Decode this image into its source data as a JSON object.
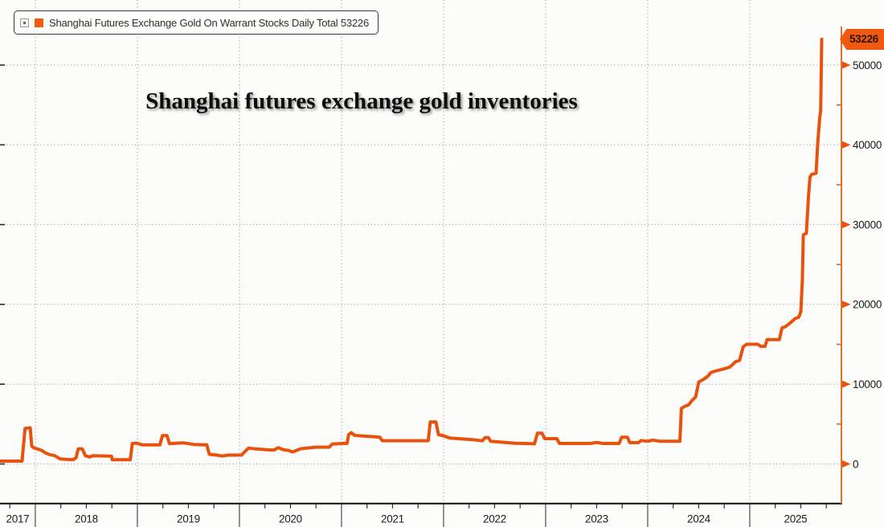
{
  "chart_data": {
    "type": "line",
    "title": "Shanghai futures exchange gold inventories",
    "legend": {
      "label": "Shanghai Futures Exchange Gold On Warrant Stocks Daily Total 53226",
      "swatch_color": "#f25c12"
    },
    "last_value": 53226,
    "last_value_label": "53226",
    "grid": {
      "show": true,
      "style": "dotted",
      "color": "#8a8a8a"
    },
    "x_axis": {
      "range": [
        2017.654,
        2025.898
      ],
      "year_labels": [
        "2017",
        "2018",
        "2019",
        "2020",
        "2021",
        "2022",
        "2023",
        "2024",
        "2025"
      ],
      "boundary_years": [
        2018,
        2019,
        2020,
        2021,
        2022,
        2023,
        2024,
        2025
      ],
      "minor_tick_interval_years": 0.25
    },
    "y_axis": {
      "side": "right",
      "ylim": [
        0,
        58150
      ],
      "ticks": [
        {
          "v": 0,
          "label": "0"
        },
        {
          "v": 10000,
          "label": "10000"
        },
        {
          "v": 20000,
          "label": "20000"
        },
        {
          "v": 30000,
          "label": "30000"
        },
        {
          "v": 40000,
          "label": "40000"
        },
        {
          "v": 50000,
          "label": "50000"
        }
      ],
      "minor_ticks_values": [
        5000,
        15000,
        25000,
        35000,
        45000
      ]
    },
    "colors": {
      "line": "#e8520d",
      "axis_orange": "#dd7325",
      "tag_bg": "#f05a10",
      "axis_text": "#1b1b1b",
      "bottom_axis": "#1a1a1a",
      "background": "#fcfcfa"
    },
    "series": [
      {
        "name": "Shanghai Futures Exchange Gold On Warrant Stocks Daily Total",
        "color": "#e8520d",
        "width": 4,
        "points": [
          [
            2017.654,
            350
          ],
          [
            2017.87,
            350
          ],
          [
            2017.9,
            4450
          ],
          [
            2017.95,
            4530
          ],
          [
            2017.965,
            2215
          ],
          [
            2017.99,
            1980
          ],
          [
            2018.03,
            1840
          ],
          [
            2018.06,
            1700
          ],
          [
            2018.1,
            1380
          ],
          [
            2018.14,
            1180
          ],
          [
            2018.19,
            1040
          ],
          [
            2018.24,
            640
          ],
          [
            2018.31,
            560
          ],
          [
            2018.37,
            530
          ],
          [
            2018.4,
            775
          ],
          [
            2018.42,
            1880
          ],
          [
            2018.46,
            1880
          ],
          [
            2018.49,
            1040
          ],
          [
            2018.53,
            875
          ],
          [
            2018.57,
            1040
          ],
          [
            2018.72,
            975
          ],
          [
            2018.745,
            975
          ],
          [
            2018.755,
            530
          ],
          [
            2018.93,
            530
          ],
          [
            2018.95,
            2550
          ],
          [
            2018.99,
            2620
          ],
          [
            2019.05,
            2390
          ],
          [
            2019.22,
            2390
          ],
          [
            2019.245,
            3540
          ],
          [
            2019.29,
            3540
          ],
          [
            2019.315,
            2550
          ],
          [
            2019.45,
            2650
          ],
          [
            2019.55,
            2450
          ],
          [
            2019.68,
            2390
          ],
          [
            2019.705,
            1210
          ],
          [
            2019.78,
            1110
          ],
          [
            2019.83,
            1000
          ],
          [
            2019.89,
            1110
          ],
          [
            2020.02,
            1110
          ],
          [
            2020.06,
            1640
          ],
          [
            2020.09,
            1980
          ],
          [
            2020.16,
            1880
          ],
          [
            2020.3,
            1750
          ],
          [
            2020.34,
            1750
          ],
          [
            2020.38,
            2040
          ],
          [
            2020.43,
            1775
          ],
          [
            2020.48,
            1700
          ],
          [
            2020.52,
            1500
          ],
          [
            2020.6,
            1900
          ],
          [
            2020.75,
            2100
          ],
          [
            2020.88,
            2100
          ],
          [
            2020.91,
            2500
          ],
          [
            2021.02,
            2570
          ],
          [
            2021.055,
            2570
          ],
          [
            2021.07,
            3680
          ],
          [
            2021.095,
            3920
          ],
          [
            2021.13,
            3580
          ],
          [
            2021.33,
            3400
          ],
          [
            2021.375,
            3350
          ],
          [
            2021.4,
            2910
          ],
          [
            2021.85,
            2910
          ],
          [
            2021.87,
            5270
          ],
          [
            2021.925,
            5270
          ],
          [
            2021.95,
            3680
          ],
          [
            2022.0,
            3520
          ],
          [
            2022.06,
            3240
          ],
          [
            2022.28,
            3050
          ],
          [
            2022.38,
            2900
          ],
          [
            2022.405,
            3300
          ],
          [
            2022.44,
            3300
          ],
          [
            2022.46,
            2840
          ],
          [
            2022.7,
            2600
          ],
          [
            2022.89,
            2530
          ],
          [
            2022.92,
            3850
          ],
          [
            2022.965,
            3850
          ],
          [
            2022.99,
            3170
          ],
          [
            2023.11,
            3170
          ],
          [
            2023.135,
            2570
          ],
          [
            2023.44,
            2570
          ],
          [
            2023.5,
            2700
          ],
          [
            2023.56,
            2570
          ],
          [
            2023.72,
            2570
          ],
          [
            2023.745,
            3350
          ],
          [
            2023.8,
            3350
          ],
          [
            2023.825,
            2670
          ],
          [
            2023.91,
            2670
          ],
          [
            2023.935,
            2940
          ],
          [
            2024.0,
            2840
          ],
          [
            2024.05,
            2990
          ],
          [
            2024.12,
            2840
          ],
          [
            2024.315,
            2840
          ],
          [
            2024.33,
            6970
          ],
          [
            2024.365,
            7230
          ],
          [
            2024.4,
            7400
          ],
          [
            2024.43,
            7900
          ],
          [
            2024.47,
            8400
          ],
          [
            2024.5,
            10270
          ],
          [
            2024.55,
            10620
          ],
          [
            2024.585,
            10950
          ],
          [
            2024.62,
            11460
          ],
          [
            2024.66,
            11630
          ],
          [
            2024.76,
            11960
          ],
          [
            2024.805,
            12140
          ],
          [
            2024.86,
            12810
          ],
          [
            2024.9,
            12980
          ],
          [
            2024.935,
            14670
          ],
          [
            2024.97,
            15010
          ],
          [
            2025.08,
            15010
          ],
          [
            2025.105,
            14740
          ],
          [
            2025.15,
            14740
          ],
          [
            2025.17,
            15590
          ],
          [
            2025.29,
            15590
          ],
          [
            2025.315,
            17040
          ],
          [
            2025.35,
            17210
          ],
          [
            2025.385,
            17550
          ],
          [
            2025.415,
            17890
          ],
          [
            2025.445,
            18230
          ],
          [
            2025.48,
            18400
          ],
          [
            2025.5,
            19070
          ],
          [
            2025.515,
            23000
          ],
          [
            2025.525,
            28730
          ],
          [
            2025.555,
            28900
          ],
          [
            2025.575,
            33500
          ],
          [
            2025.59,
            35950
          ],
          [
            2025.605,
            36280
          ],
          [
            2025.65,
            36450
          ],
          [
            2025.665,
            39980
          ],
          [
            2025.685,
            43300
          ],
          [
            2025.695,
            44300
          ],
          [
            2025.705,
            53226
          ],
          [
            2025.72,
            53226
          ]
        ]
      }
    ]
  }
}
